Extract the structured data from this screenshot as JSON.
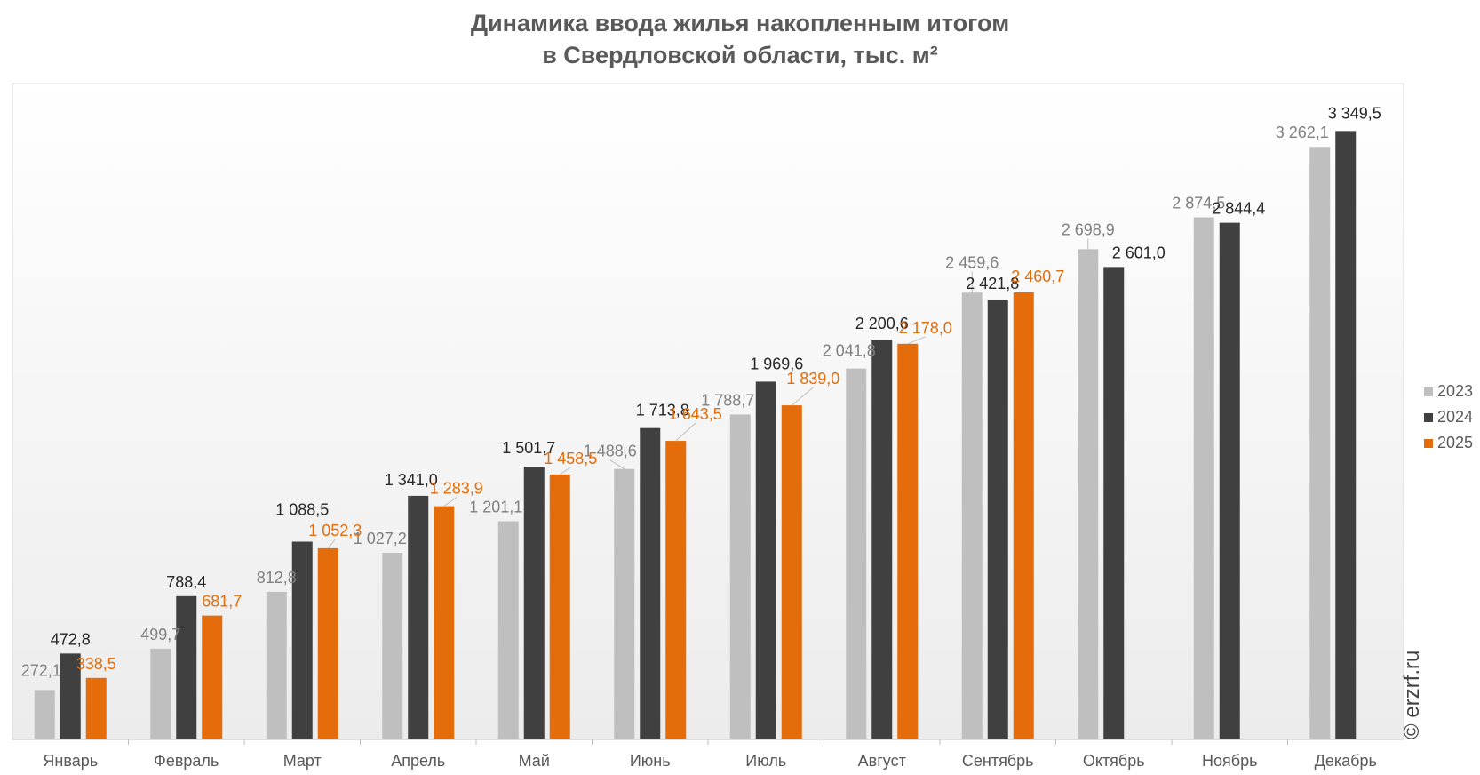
{
  "title_line1": "Динамика ввода жилья накопленным итогом",
  "title_line2": "в Свердловской области, тыс. м²",
  "watermark": "© erzrf.ru",
  "colors": {
    "2023": "#bfbfbf",
    "2024": "#404040",
    "2025": "#e46c0a",
    "label_2023": "#808080",
    "label_2024": "#262626",
    "label_2025": "#e46c0a",
    "axis_text": "#595959"
  },
  "chart_data": {
    "type": "bar",
    "title": "Динамика ввода жилья накопленным итогом в Свердловской области, тыс. м²",
    "xlabel": "",
    "ylabel": "",
    "ylim": [
      0,
      3600
    ],
    "grid": false,
    "legend_position": "right",
    "categories": [
      "Январь",
      "Февраль",
      "Март",
      "Апрель",
      "Май",
      "Июнь",
      "Июль",
      "Август",
      "Сентябрь",
      "Октябрь",
      "Ноябрь",
      "Декабрь"
    ],
    "series": [
      {
        "name": "2023",
        "values": [
          272.1,
          499.7,
          812.8,
          1027.2,
          1201.1,
          1488.6,
          1788.7,
          2041.8,
          2459.6,
          2698.9,
          2874.5,
          3262.1
        ],
        "labels": [
          "272,1",
          "499,7",
          "812,8",
          "1 027,2",
          "1 201,1",
          "1 488,6",
          "1 788,7",
          "2 041,8",
          "2 459,6",
          "2 698,9",
          "2 874,5",
          "3 262,1"
        ]
      },
      {
        "name": "2024",
        "values": [
          472.8,
          788.4,
          1088.5,
          1341.0,
          1501.7,
          1713.8,
          1969.6,
          2200.6,
          2421.8,
          2601.0,
          2844.4,
          3349.5
        ],
        "labels": [
          "472,8",
          "788,4",
          "1 088,5",
          "1 341,0",
          "1 501,7",
          "1 713,8",
          "1 969,6",
          "2 200,6",
          "2 421,8",
          "2 601,0",
          "2 844,4",
          "3 349,5"
        ]
      },
      {
        "name": "2025",
        "values": [
          338.5,
          681.7,
          1052.3,
          1283.9,
          1458.5,
          1643.5,
          1839.0,
          2178.0,
          2460.7,
          null,
          null,
          null
        ],
        "labels": [
          "338,5",
          "681,7",
          "1 052,3",
          "1 283,9",
          "1 458,5",
          "1 643,5",
          "1 839,0",
          "2 178,0",
          "2 460,7",
          "",
          "",
          ""
        ]
      }
    ]
  }
}
